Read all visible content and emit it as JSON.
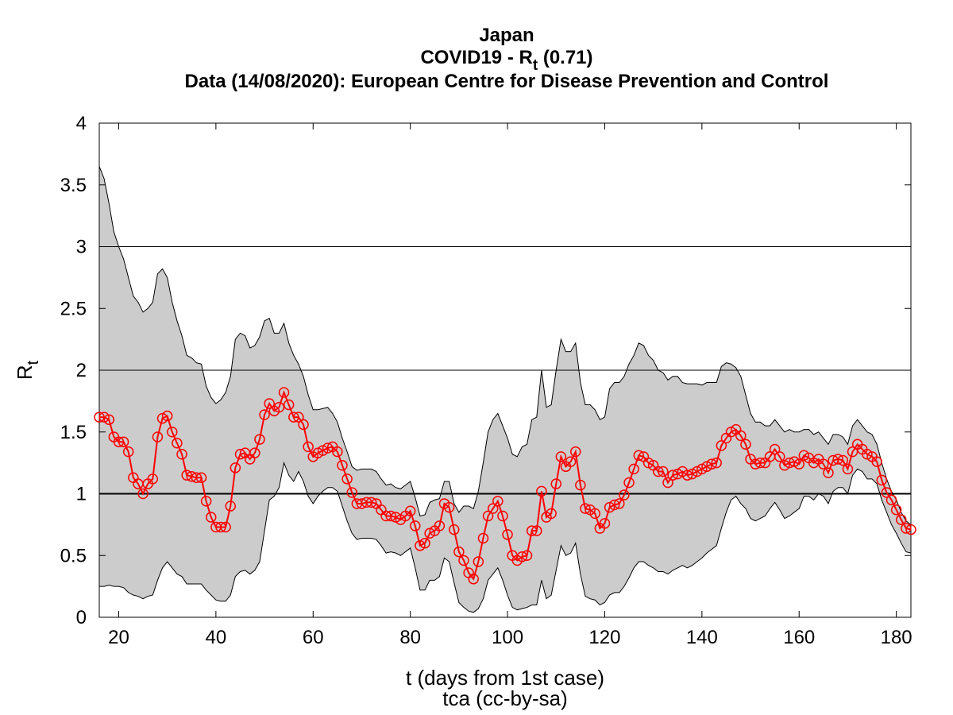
{
  "chart_data": {
    "type": "line",
    "title": "Japan",
    "subtitle": {
      "main": "COVID19 - R",
      "sub": "t",
      "tail": " (0.71)"
    },
    "source": "Data (14/08/2020): European Centre for Disease Prevention and Control",
    "xlabel": "t (days from 1st case)",
    "caption": "tca (cc-by-sa)",
    "ylabel": {
      "main": "R",
      "sub": "t"
    },
    "xlim": [
      16,
      183
    ],
    "ylim": [
      0,
      4
    ],
    "xticks": [
      20,
      40,
      60,
      80,
      100,
      120,
      140,
      160,
      180
    ],
    "yticks": [
      0,
      0.5,
      1,
      1.5,
      2,
      2.5,
      3,
      3.5,
      4
    ],
    "hlines": [
      1,
      2,
      3
    ],
    "emphasized_hline": 1,
    "x": [
      16,
      17,
      18,
      19,
      20,
      21,
      22,
      23,
      24,
      25,
      26,
      27,
      28,
      29,
      30,
      31,
      32,
      33,
      34,
      35,
      36,
      37,
      38,
      39,
      40,
      41,
      42,
      43,
      44,
      45,
      46,
      47,
      48,
      49,
      50,
      51,
      52,
      53,
      54,
      55,
      56,
      57,
      58,
      59,
      60,
      61,
      62,
      63,
      64,
      65,
      66,
      67,
      68,
      69,
      70,
      71,
      72,
      73,
      74,
      75,
      76,
      77,
      78,
      79,
      80,
      81,
      82,
      83,
      84,
      85,
      86,
      87,
      88,
      89,
      90,
      91,
      92,
      93,
      94,
      95,
      96,
      97,
      98,
      99,
      100,
      101,
      102,
      103,
      104,
      105,
      106,
      107,
      108,
      109,
      110,
      111,
      112,
      113,
      114,
      115,
      116,
      117,
      118,
      119,
      120,
      121,
      122,
      123,
      124,
      125,
      126,
      127,
      128,
      129,
      130,
      131,
      132,
      133,
      134,
      135,
      136,
      137,
      138,
      139,
      140,
      141,
      142,
      143,
      144,
      145,
      146,
      147,
      148,
      149,
      150,
      151,
      152,
      153,
      154,
      155,
      156,
      157,
      158,
      159,
      160,
      161,
      162,
      163,
      164,
      165,
      166,
      167,
      168,
      169,
      170,
      171,
      172,
      173,
      174,
      175,
      176,
      177,
      178,
      179,
      180,
      181,
      182,
      183
    ],
    "series": [
      {
        "color": "#ff0000",
        "values": [
          1.62,
          1.62,
          1.6,
          1.46,
          1.42,
          1.42,
          1.34,
          1.13,
          1.08,
          1.0,
          1.08,
          1.12,
          1.46,
          1.61,
          1.63,
          1.5,
          1.41,
          1.32,
          1.15,
          1.14,
          1.13,
          1.13,
          0.94,
          0.81,
          0.73,
          0.73,
          0.73,
          0.9,
          1.21,
          1.32,
          1.33,
          1.28,
          1.33,
          1.44,
          1.64,
          1.73,
          1.67,
          1.7,
          1.82,
          1.72,
          1.62,
          1.62,
          1.56,
          1.38,
          1.3,
          1.33,
          1.35,
          1.37,
          1.38,
          1.34,
          1.23,
          1.12,
          1.01,
          0.92,
          0.92,
          0.93,
          0.93,
          0.92,
          0.87,
          0.82,
          0.82,
          0.81,
          0.79,
          0.82,
          0.86,
          0.74,
          0.58,
          0.6,
          0.68,
          0.7,
          0.74,
          0.92,
          0.89,
          0.71,
          0.53,
          0.46,
          0.36,
          0.31,
          0.45,
          0.64,
          0.82,
          0.88,
          0.94,
          0.82,
          0.67,
          0.5,
          0.46,
          0.49,
          0.5,
          0.7,
          0.7,
          1.02,
          0.81,
          0.84,
          1.08,
          1.3,
          1.22,
          1.26,
          1.34,
          1.07,
          0.88,
          0.87,
          0.84,
          0.72,
          0.76,
          0.89,
          0.91,
          0.92,
          0.99,
          1.09,
          1.2,
          1.31,
          1.3,
          1.25,
          1.23,
          1.18,
          1.18,
          1.09,
          1.15,
          1.16,
          1.18,
          1.15,
          1.16,
          1.18,
          1.2,
          1.22,
          1.24,
          1.25,
          1.39,
          1.45,
          1.5,
          1.52,
          1.47,
          1.4,
          1.28,
          1.24,
          1.25,
          1.25,
          1.3,
          1.36,
          1.3,
          1.23,
          1.25,
          1.26,
          1.24,
          1.31,
          1.29,
          1.25,
          1.28,
          1.24,
          1.17,
          1.27,
          1.28,
          1.27,
          1.2,
          1.34,
          1.4,
          1.36,
          1.32,
          1.3,
          1.26,
          1.11,
          1.01,
          0.95,
          0.87,
          0.79,
          0.72,
          0.71
        ]
      }
    ],
    "band": {
      "color": "#cccccc",
      "upper": [
        3.65,
        3.55,
        3.35,
        3.12,
        3.0,
        2.9,
        2.75,
        2.6,
        2.55,
        2.47,
        2.5,
        2.55,
        2.78,
        2.82,
        2.75,
        2.55,
        2.4,
        2.28,
        2.12,
        2.1,
        2.06,
        2.05,
        1.87,
        1.78,
        1.73,
        1.76,
        1.82,
        1.95,
        2.25,
        2.3,
        2.28,
        2.18,
        2.2,
        2.27,
        2.4,
        2.42,
        2.3,
        2.3,
        2.38,
        2.22,
        2.12,
        2.05,
        1.95,
        1.8,
        1.68,
        1.68,
        1.69,
        1.7,
        1.65,
        1.58,
        1.45,
        1.34,
        1.22,
        1.19,
        1.2,
        1.2,
        1.2,
        1.18,
        1.12,
        1.07,
        1.08,
        1.05,
        1.04,
        1.07,
        1.1,
        0.97,
        0.82,
        0.83,
        0.93,
        0.95,
        0.96,
        1.1,
        1.1,
        0.92,
        0.85,
        0.9,
        0.9,
        0.88,
        1.02,
        1.25,
        1.5,
        1.6,
        1.65,
        1.55,
        1.45,
        1.32,
        1.3,
        1.38,
        1.4,
        1.6,
        1.62,
        2.0,
        1.7,
        1.72,
        2.0,
        2.25,
        2.15,
        2.15,
        2.22,
        1.9,
        1.72,
        1.72,
        1.68,
        1.6,
        1.62,
        1.85,
        1.9,
        1.9,
        1.95,
        2.05,
        2.12,
        2.22,
        2.2,
        2.12,
        2.08,
        2.0,
        1.98,
        1.92,
        1.95,
        1.95,
        1.9,
        1.89,
        1.89,
        1.89,
        1.88,
        1.9,
        1.9,
        1.9,
        2.03,
        2.06,
        2.05,
        2.02,
        1.95,
        1.8,
        1.65,
        1.58,
        1.58,
        1.55,
        1.55,
        1.6,
        1.55,
        1.5,
        1.52,
        1.5,
        1.5,
        1.52,
        1.52,
        1.48,
        1.5,
        1.45,
        1.4,
        1.48,
        1.48,
        1.46,
        1.4,
        1.55,
        1.6,
        1.55,
        1.5,
        1.48,
        1.4,
        1.25,
        1.12,
        1.02,
        0.95,
        0.85,
        0.78,
        0.75
      ],
      "lower": [
        0.25,
        0.25,
        0.26,
        0.25,
        0.25,
        0.24,
        0.2,
        0.18,
        0.17,
        0.15,
        0.17,
        0.18,
        0.3,
        0.4,
        0.45,
        0.4,
        0.35,
        0.33,
        0.27,
        0.27,
        0.27,
        0.27,
        0.22,
        0.18,
        0.14,
        0.13,
        0.13,
        0.18,
        0.33,
        0.37,
        0.38,
        0.35,
        0.38,
        0.45,
        0.7,
        0.95,
        0.98,
        1.05,
        1.25,
        1.15,
        1.1,
        1.18,
        1.1,
        0.98,
        0.92,
        0.98,
        1.02,
        1.05,
        1.05,
        1.02,
        0.9,
        0.78,
        0.68,
        0.63,
        0.64,
        0.64,
        0.64,
        0.63,
        0.58,
        0.52,
        0.53,
        0.52,
        0.5,
        0.53,
        0.56,
        0.4,
        0.22,
        0.22,
        0.3,
        0.3,
        0.33,
        0.48,
        0.45,
        0.28,
        0.12,
        0.08,
        0.05,
        0.04,
        0.07,
        0.15,
        0.3,
        0.35,
        0.4,
        0.3,
        0.18,
        0.08,
        0.06,
        0.07,
        0.08,
        0.1,
        0.1,
        0.3,
        0.15,
        0.18,
        0.38,
        0.58,
        0.5,
        0.52,
        0.6,
        0.35,
        0.17,
        0.15,
        0.14,
        0.1,
        0.12,
        0.18,
        0.2,
        0.2,
        0.25,
        0.32,
        0.4,
        0.45,
        0.45,
        0.42,
        0.4,
        0.37,
        0.37,
        0.35,
        0.38,
        0.4,
        0.42,
        0.4,
        0.42,
        0.45,
        0.48,
        0.52,
        0.55,
        0.58,
        0.72,
        0.85,
        0.95,
        0.98,
        0.92,
        0.88,
        0.8,
        0.78,
        0.8,
        0.82,
        0.88,
        0.93,
        0.87,
        0.8,
        0.82,
        0.85,
        0.88,
        0.98,
        0.98,
        0.95,
        1.0,
        0.98,
        0.92,
        1.02,
        1.05,
        1.05,
        1.0,
        1.15,
        1.2,
        1.18,
        1.12,
        1.12,
        1.08,
        0.95,
        0.85,
        0.75,
        0.68,
        0.6,
        0.53,
        0.52
      ]
    }
  }
}
